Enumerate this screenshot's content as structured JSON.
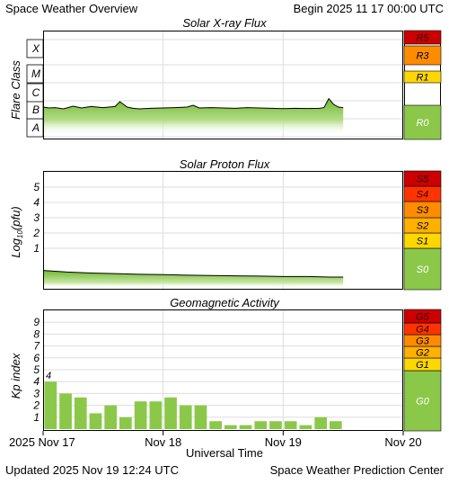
{
  "header": {
    "title": "Space Weather Overview",
    "begin": "Begin 2025 11 17 00:00 UTC"
  },
  "footer": {
    "updated": "Updated 2025 Nov 19 12:24 UTC",
    "source": "Space Weather Prediction Center"
  },
  "x_axis": {
    "label": "Universal Time",
    "ticks": [
      "2025 Nov 17",
      "Nov 18",
      "Nov 19",
      "Nov 20"
    ],
    "range_days": [
      0,
      3
    ]
  },
  "colors": {
    "green": "#8bc84a",
    "yellow": "#ffd700",
    "light_orange": "#ffb000",
    "orange": "#ff8c00",
    "red_orange": "#ff3300",
    "red": "#cc0000"
  },
  "chart_data": [
    {
      "type": "area",
      "title": "Solar X-ray Flux",
      "ylabel": "Flare Class",
      "y_ticks": [
        "A",
        "B",
        "C",
        "M",
        "X"
      ],
      "scale_labels": [
        {
          "label": "R0",
          "level": "green"
        },
        {
          "label": "R1",
          "level": "yellow"
        },
        {
          "label": "R3",
          "level": "orange"
        },
        {
          "label": "R5",
          "level": "red"
        }
      ],
      "x_days": [
        0,
        0.05,
        0.1,
        0.17,
        0.25,
        0.32,
        0.4,
        0.5,
        0.6,
        0.64,
        0.67,
        0.7,
        0.75,
        0.8,
        0.9,
        1.0,
        1.1,
        1.2,
        1.25,
        1.3,
        1.4,
        1.5,
        1.6,
        1.7,
        1.8,
        1.9,
        2.0,
        2.1,
        2.2,
        2.3,
        2.34,
        2.38,
        2.42,
        2.46,
        2.5
      ],
      "log_flux": [
        -6.35,
        -6.4,
        -6.38,
        -6.45,
        -6.3,
        -6.4,
        -6.32,
        -6.38,
        -6.32,
        -6.05,
        -6.2,
        -6.35,
        -6.42,
        -6.45,
        -6.42,
        -6.4,
        -6.38,
        -6.35,
        -6.25,
        -6.4,
        -6.38,
        -6.4,
        -6.42,
        -6.38,
        -6.4,
        -6.42,
        -6.44,
        -6.42,
        -6.43,
        -6.42,
        -6.38,
        -5.88,
        -6.2,
        -6.35,
        -6.38
      ]
    },
    {
      "type": "area",
      "title": "Solar Proton Flux",
      "ylabel": "Log10(pfu)",
      "y_ticks": [
        "1",
        "2",
        "3",
        "4",
        "5"
      ],
      "scale_labels": [
        {
          "label": "S0",
          "level": "green"
        },
        {
          "label": "S1",
          "level": "yellow"
        },
        {
          "label": "S2",
          "level": "light_orange"
        },
        {
          "label": "S3",
          "level": "orange"
        },
        {
          "label": "S4",
          "level": "red_orange"
        },
        {
          "label": "S5",
          "level": "red"
        }
      ],
      "x_days": [
        0,
        0.2,
        0.4,
        0.6,
        0.8,
        1.0,
        1.2,
        1.4,
        1.6,
        1.8,
        2.0,
        2.2,
        2.4,
        2.5
      ],
      "log_pfu": [
        -0.45,
        -0.55,
        -0.62,
        -0.65,
        -0.7,
        -0.72,
        -0.76,
        -0.78,
        -0.8,
        -0.82,
        -0.85,
        -0.85,
        -0.88,
        -0.88
      ]
    },
    {
      "type": "bar",
      "title": "Geomagnetic Activity",
      "ylabel": "Kp index",
      "y_ticks": [
        "1",
        "2",
        "3",
        "4",
        "5",
        "6",
        "7",
        "8",
        "9"
      ],
      "ylim": [
        0,
        10
      ],
      "bar_width_days": 0.125,
      "values": [
        4,
        3,
        2.67,
        1.33,
        2,
        1,
        2.33,
        2.33,
        2.67,
        2,
        2,
        0.67,
        0.33,
        0.33,
        0.67,
        0.67,
        0.67,
        0.33,
        1,
        0.67
      ],
      "annotations": [
        {
          "index": 0,
          "text": "4"
        }
      ],
      "scale_labels": [
        {
          "label": "G0",
          "level": "green"
        },
        {
          "label": "G1",
          "level": "yellow"
        },
        {
          "label": "G2",
          "level": "light_orange"
        },
        {
          "label": "G3",
          "level": "orange"
        },
        {
          "label": "G4",
          "level": "red_orange"
        },
        {
          "label": "G5",
          "level": "red"
        }
      ]
    }
  ]
}
